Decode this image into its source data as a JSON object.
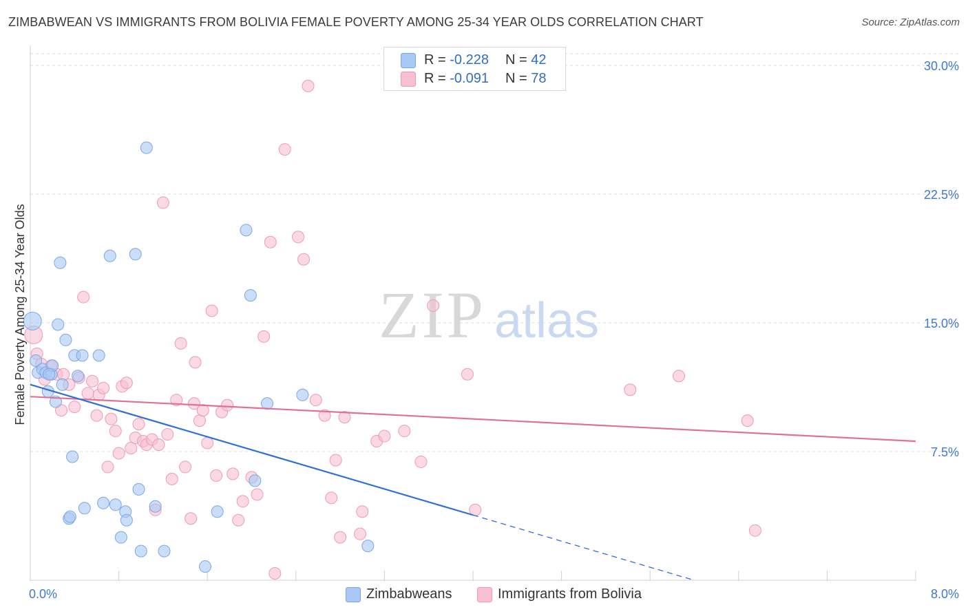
{
  "title": "ZIMBABWEAN VS IMMIGRANTS FROM BOLIVIA FEMALE POVERTY AMONG 25-34 YEAR OLDS CORRELATION CHART",
  "source": "Source: ZipAtlas.com",
  "watermark": {
    "zip": "ZIP",
    "atlas": "atlas"
  },
  "legend": {
    "rows": [
      {
        "r_label": "R = ",
        "r_value": "-0.228",
        "n_label": "N = ",
        "n_value": "42"
      },
      {
        "r_label": "R = ",
        "r_value": "-0.091",
        "n_label": "N = ",
        "n_value": "78"
      }
    ]
  },
  "bottom_legend": [
    "Zimbabweans",
    "Immigrants from Bolivia"
  ],
  "colors": {
    "blue_fill": "#a9c8f3",
    "blue_stroke": "#7ba7e6",
    "blue_line": "#2f6fd6",
    "pink_fill": "#f7bfd2",
    "pink_stroke": "#ee9ab7",
    "pink_line": "#e0709a",
    "axis_label": "#3d79cc",
    "grid": "#dcdcdc"
  },
  "chart_data": {
    "type": "scatter",
    "title": "ZIMBABWEAN VS IMMIGRANTS FROM BOLIVIA FEMALE POVERTY AMONG 25-34 YEAR OLDS CORRELATION CHART",
    "xlabel": "",
    "ylabel": "Female Poverty Among 25-34 Year Olds",
    "xlim": [
      0,
      8
    ],
    "ylim": [
      0,
      30.8
    ],
    "x_tick_labels": [
      "0.0%",
      "8.0%"
    ],
    "y_ticks": [
      7.5,
      15.0,
      22.5,
      30.0
    ],
    "y_tick_labels": [
      "7.5%",
      "15.0%",
      "22.5%",
      "30.0%"
    ],
    "series": [
      {
        "name": "Zimbabweans",
        "color": "blue",
        "r": -0.228,
        "n": 42,
        "trend": {
          "x0": 0.0,
          "y0": 11.4,
          "x1": 4.0,
          "y1": 3.8,
          "dash_to_x": 6.0,
          "dash_to_y": 0.0
        },
        "points": [
          [
            0.02,
            15.1
          ],
          [
            0.05,
            12.8
          ],
          [
            0.07,
            12.1
          ],
          [
            0.11,
            12.3
          ],
          [
            0.14,
            12.1
          ],
          [
            0.16,
            11.0
          ],
          [
            0.19,
            12.0
          ],
          [
            0.2,
            12.5
          ],
          [
            0.23,
            10.4
          ],
          [
            0.25,
            14.9
          ],
          [
            0.27,
            18.5
          ],
          [
            0.29,
            11.4
          ],
          [
            0.32,
            14.0
          ],
          [
            0.35,
            3.6
          ],
          [
            0.36,
            3.7
          ],
          [
            0.38,
            7.2
          ],
          [
            0.4,
            13.1
          ],
          [
            0.43,
            11.9
          ],
          [
            0.47,
            13.1
          ],
          [
            0.49,
            4.2
          ],
          [
            0.62,
            13.1
          ],
          [
            0.66,
            4.5
          ],
          [
            0.72,
            18.9
          ],
          [
            0.77,
            4.4
          ],
          [
            0.82,
            2.5
          ],
          [
            0.86,
            4.0
          ],
          [
            0.87,
            3.5
          ],
          [
            0.95,
            19.0
          ],
          [
            0.98,
            5.3
          ],
          [
            1.0,
            1.7
          ],
          [
            1.05,
            25.2
          ],
          [
            1.13,
            4.3
          ],
          [
            1.21,
            1.7
          ],
          [
            1.69,
            4.0
          ],
          [
            1.58,
            0.8
          ],
          [
            1.95,
            20.4
          ],
          [
            1.99,
            16.6
          ],
          [
            2.03,
            5.8
          ],
          [
            2.14,
            10.3
          ],
          [
            2.46,
            10.8
          ],
          [
            3.05,
            2.0
          ],
          [
            0.17,
            12.0
          ]
        ]
      },
      {
        "name": "Immigrants from Bolivia",
        "color": "pink",
        "r": -0.091,
        "n": 78,
        "trend": {
          "x0": 0.0,
          "y0": 10.7,
          "x1": 8.0,
          "y1": 8.1
        },
        "points": [
          [
            0.03,
            14.3
          ],
          [
            0.06,
            13.2
          ],
          [
            0.1,
            12.6
          ],
          [
            0.13,
            11.7
          ],
          [
            0.19,
            12.5
          ],
          [
            0.24,
            12.0
          ],
          [
            0.28,
            9.9
          ],
          [
            0.3,
            12.0
          ],
          [
            0.35,
            11.4
          ],
          [
            0.4,
            10.1
          ],
          [
            0.44,
            11.8
          ],
          [
            0.48,
            16.5
          ],
          [
            0.52,
            10.9
          ],
          [
            0.56,
            11.6
          ],
          [
            0.6,
            9.6
          ],
          [
            0.62,
            10.8
          ],
          [
            0.66,
            11.2
          ],
          [
            0.7,
            6.6
          ],
          [
            0.73,
            9.4
          ],
          [
            0.77,
            8.7
          ],
          [
            0.8,
            7.4
          ],
          [
            0.83,
            11.3
          ],
          [
            0.87,
            11.5
          ],
          [
            0.91,
            7.7
          ],
          [
            0.95,
            8.3
          ],
          [
            0.98,
            9.1
          ],
          [
            1.02,
            8.1
          ],
          [
            1.05,
            7.9
          ],
          [
            1.1,
            8.2
          ],
          [
            1.13,
            4.1
          ],
          [
            1.16,
            7.9
          ],
          [
            1.2,
            22.0
          ],
          [
            1.24,
            8.5
          ],
          [
            1.28,
            5.9
          ],
          [
            1.32,
            10.5
          ],
          [
            1.36,
            13.8
          ],
          [
            1.4,
            6.6
          ],
          [
            1.45,
            3.6
          ],
          [
            1.49,
            12.7
          ],
          [
            1.53,
            9.3
          ],
          [
            1.56,
            9.9
          ],
          [
            1.6,
            8.0
          ],
          [
            1.64,
            15.7
          ],
          [
            1.68,
            6.1
          ],
          [
            1.73,
            9.8
          ],
          [
            1.78,
            10.2
          ],
          [
            1.83,
            6.2
          ],
          [
            1.88,
            3.5
          ],
          [
            1.92,
            4.6
          ],
          [
            2.0,
            6.0
          ],
          [
            2.05,
            5.0
          ],
          [
            2.11,
            14.2
          ],
          [
            2.17,
            19.7
          ],
          [
            2.21,
            0.4
          ],
          [
            2.3,
            25.1
          ],
          [
            2.42,
            20.0
          ],
          [
            2.47,
            18.7
          ],
          [
            2.51,
            28.8
          ],
          [
            2.58,
            10.5
          ],
          [
            2.66,
            9.6
          ],
          [
            2.72,
            4.8
          ],
          [
            2.8,
            2.5
          ],
          [
            2.84,
            9.5
          ],
          [
            2.98,
            2.7
          ],
          [
            3.0,
            4.0
          ],
          [
            3.13,
            8.1
          ],
          [
            3.2,
            8.4
          ],
          [
            3.38,
            8.7
          ],
          [
            3.53,
            6.9
          ],
          [
            3.64,
            16.0
          ],
          [
            3.95,
            12.0
          ],
          [
            4.02,
            4.1
          ],
          [
            5.42,
            11.1
          ],
          [
            5.86,
            11.9
          ],
          [
            6.48,
            9.3
          ],
          [
            6.55,
            2.9
          ],
          [
            2.76,
            7.0
          ],
          [
            1.48,
            10.3
          ]
        ]
      }
    ]
  }
}
